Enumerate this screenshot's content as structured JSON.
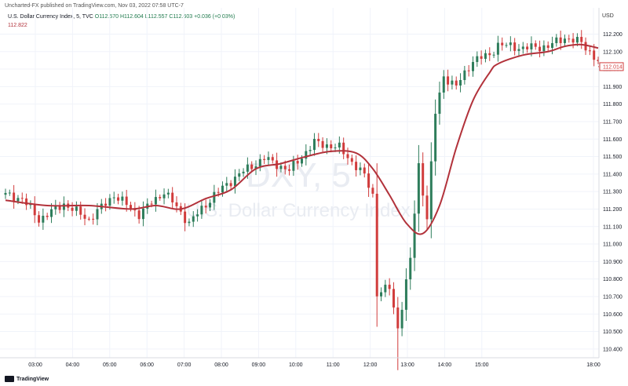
{
  "header": {
    "published": "Uncharted-FX published on TradingView.com, Nov 03, 2022 07:58 UTC-7",
    "symbol": "U.S. Dollar Currency Index, 5, TVC",
    "ohlc": "O112.570 H112.604 L112.557 C112.603 +0.036 (+0.03%)",
    "ma_value": "112.822"
  },
  "watermark": {
    "ticker": "DXY, 5",
    "name": "U.S. Dollar Currency Index"
  },
  "footer": {
    "brand": "TradingView",
    "icon": "tradingview-logo-icon"
  },
  "colors": {
    "up": "#2e7d5b",
    "down": "#d13c3c",
    "ma": "#b2323b",
    "grid": "#f0f3fa",
    "price_label_bg": "#ffffff"
  },
  "chart_data": {
    "type": "candlestick",
    "currency": "USD",
    "ylim": [
      110.35,
      112.35
    ],
    "yticks": [
      "112.200",
      "112.100",
      "112.000",
      "111.900",
      "111.800",
      "111.700",
      "111.600",
      "111.500",
      "111.400",
      "111.300",
      "111.200",
      "111.100",
      "111.000",
      "110.900",
      "110.800",
      "110.700",
      "110.600",
      "110.500",
      "110.400"
    ],
    "xticks": [
      {
        "label": "03:00",
        "hour": 3
      },
      {
        "label": "04:00",
        "hour": 4
      },
      {
        "label": "05:00",
        "hour": 5
      },
      {
        "label": "06:00",
        "hour": 6
      },
      {
        "label": "07:00",
        "hour": 7
      },
      {
        "label": "08:00",
        "hour": 8
      },
      {
        "label": "09:00",
        "hour": 9
      },
      {
        "label": "10:00",
        "hour": 10
      },
      {
        "label": "11:00",
        "hour": 11
      },
      {
        "label": "12:00",
        "hour": 12
      },
      {
        "label": "13:00",
        "hour": 13
      },
      {
        "label": "14:00",
        "hour": 14
      },
      {
        "label": "15:00",
        "hour": 15
      },
      {
        "label": "18:00",
        "hour": 18
      }
    ],
    "last_price": "112.014",
    "anchors": [
      {
        "t": 0,
        "c": 111.28
      },
      {
        "t": 4,
        "c": 111.26
      },
      {
        "t": 8,
        "c": 111.14
      },
      {
        "t": 14,
        "c": 111.23
      },
      {
        "t": 20,
        "c": 111.14
      },
      {
        "t": 26,
        "c": 111.28
      },
      {
        "t": 32,
        "c": 111.17
      },
      {
        "t": 38,
        "c": 111.3
      },
      {
        "t": 44,
        "c": 111.12
      },
      {
        "t": 50,
        "c": 111.28
      },
      {
        "t": 56,
        "c": 111.4
      },
      {
        "t": 62,
        "c": 111.49
      },
      {
        "t": 68,
        "c": 111.42
      },
      {
        "t": 74,
        "c": 111.58
      },
      {
        "t": 80,
        "c": 111.55
      },
      {
        "t": 86,
        "c": 111.39
      },
      {
        "t": 88,
        "c": 111.28
      },
      {
        "t": 89,
        "c": 110.72
      },
      {
        "t": 92,
        "c": 110.75
      },
      {
        "t": 94,
        "c": 110.52
      },
      {
        "t": 97,
        "c": 110.91
      },
      {
        "t": 99,
        "c": 111.45
      },
      {
        "t": 101,
        "c": 111.15
      },
      {
        "t": 103,
        "c": 111.75
      },
      {
        "t": 105,
        "c": 111.96
      },
      {
        "t": 108,
        "c": 111.9
      },
      {
        "t": 112,
        "c": 112.05
      },
      {
        "t": 116,
        "c": 112.08
      },
      {
        "t": 118,
        "c": 112.14
      },
      {
        "t": 124,
        "c": 112.12
      },
      {
        "t": 130,
        "c": 112.13
      },
      {
        "t": 134,
        "c": 112.18
      },
      {
        "t": 138,
        "c": 112.15
      },
      {
        "t": 140,
        "c": 112.1
      },
      {
        "t": 142,
        "c": 112.04
      }
    ],
    "ma_points": [
      {
        "t": 0,
        "v": 111.25
      },
      {
        "t": 10,
        "v": 111.22
      },
      {
        "t": 20,
        "v": 111.22
      },
      {
        "t": 30,
        "v": 111.2
      },
      {
        "t": 36,
        "v": 111.22
      },
      {
        "t": 42,
        "v": 111.2
      },
      {
        "t": 48,
        "v": 111.26
      },
      {
        "t": 54,
        "v": 111.31
      },
      {
        "t": 60,
        "v": 111.43
      },
      {
        "t": 66,
        "v": 111.46
      },
      {
        "t": 72,
        "v": 111.5
      },
      {
        "t": 78,
        "v": 111.53
      },
      {
        "t": 84,
        "v": 111.52
      },
      {
        "t": 88,
        "v": 111.43
      },
      {
        "t": 92,
        "v": 111.28
      },
      {
        "t": 96,
        "v": 111.12
      },
      {
        "t": 100,
        "v": 111.06
      },
      {
        "t": 104,
        "v": 111.22
      },
      {
        "t": 108,
        "v": 111.55
      },
      {
        "t": 112,
        "v": 111.82
      },
      {
        "t": 116,
        "v": 111.98
      },
      {
        "t": 118,
        "v": 112.03
      },
      {
        "t": 124,
        "v": 112.08
      },
      {
        "t": 130,
        "v": 112.1
      },
      {
        "t": 134,
        "v": 112.13
      },
      {
        "t": 138,
        "v": 112.14
      },
      {
        "t": 142,
        "v": 112.12
      }
    ]
  }
}
